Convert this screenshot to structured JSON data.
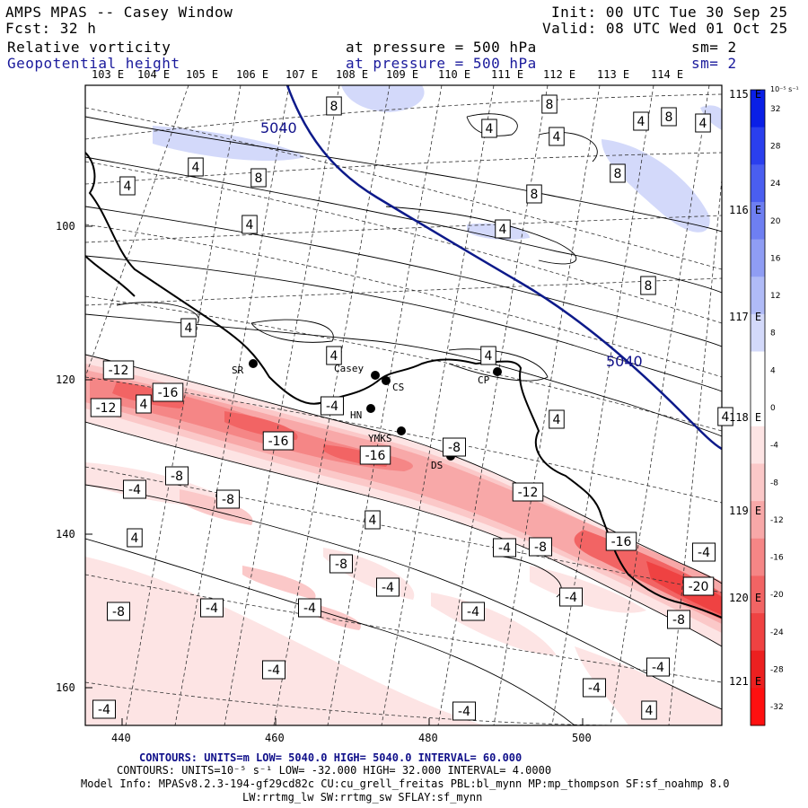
{
  "header": {
    "title": "AMPS MPAS -- Casey Window",
    "init": "Init: 00 UTC Tue 30 Sep 25",
    "fcst": "Fcst:   32 h",
    "valid": "Valid: 08 UTC Wed 01 Oct 25",
    "field1": "Relative vorticity",
    "field1_pressure": "at pressure =  500 hPa",
    "field1_sm": "sm= 2",
    "field2": "Geopotential height",
    "field2_pressure": "at pressure =  500 hPa",
    "field2_sm": "sm= 2"
  },
  "axes": {
    "top_lon_labels": [
      "103 E",
      "104 E",
      "105 E",
      "106 E",
      "107 E",
      "108 E",
      "109 E",
      "110 E",
      "111 E",
      "112 E",
      "113 E",
      "114 E"
    ],
    "right_lon_labels": [
      "115 E",
      "116 E",
      "117 E",
      "118 E",
      "119 E",
      "120 E",
      "121 E"
    ],
    "x_ticks": [
      "440",
      "460",
      "480",
      "500"
    ],
    "y_ticks": [
      "100",
      "120",
      "140",
      "160"
    ]
  },
  "colorbar": {
    "unit": "10⁻⁵ s⁻¹",
    "labels": [
      "32",
      "28",
      "24",
      "20",
      "16",
      "12",
      "8",
      "4",
      "0",
      "-4",
      "-8",
      "-12",
      "-16",
      "-20",
      "-24",
      "-28",
      "-32"
    ],
    "colors": [
      "#0a1fe6",
      "#2a3fee",
      "#4a5ef0",
      "#6e7ff2",
      "#8f9df4",
      "#b0bbf7",
      "#d3d9fa",
      "#ffffff",
      "#ffffff",
      "#fde4e4",
      "#fbc8c8",
      "#f8a8a8",
      "#f58686",
      "#f26464",
      "#ef4242",
      "#ec2020",
      "#ff1010"
    ]
  },
  "stations": [
    {
      "name": "SR"
    },
    {
      "name": "Casey"
    },
    {
      "name": "CS"
    },
    {
      "name": "HN"
    },
    {
      "name": "YMKS"
    },
    {
      "name": "DS"
    },
    {
      "name": "CP"
    }
  ],
  "height_contour_label": "5040",
  "vort_labels": [
    "8",
    "8",
    "4",
    "4",
    "4",
    "8",
    "4",
    "4",
    "8",
    "4",
    "8",
    "8",
    "4",
    "4",
    "8",
    "4",
    "4",
    "4",
    "4",
    "4",
    "4",
    "-4",
    "-12",
    "-12",
    "-16",
    "-16",
    "-16",
    "-8",
    "-8",
    "-4",
    "-8",
    "-12",
    "4",
    "-4",
    "4",
    "-8",
    "-4",
    "-8",
    "-4",
    "-16",
    "-4",
    "-4",
    "-20",
    "-4",
    "-8",
    "-4",
    "-8",
    "-4",
    "-4",
    "-4",
    "-4",
    "4",
    "-4"
  ],
  "footer": {
    "contours1": "CONTOURS:  UNITS=m   LOW=  5040.0          HIGH=  5040.0        INTERVAL=   60.000",
    "contours2": "CONTOURS:  UNITS=10⁻⁵ s⁻¹   LOW= -32.000          HIGH=  32.000         INTERVAL=   4.0000",
    "model_info": "Model Info: MPASv8.2.3-194-gf29cd82c CU:cu_grell_freitas PBL:bl_mynn MP:mp_thompson SF:sf_noahmp 8.0",
    "model_info2": "LW:rrtmg_lw SW:rrtmg_sw SFLAY:sf_mynn"
  }
}
